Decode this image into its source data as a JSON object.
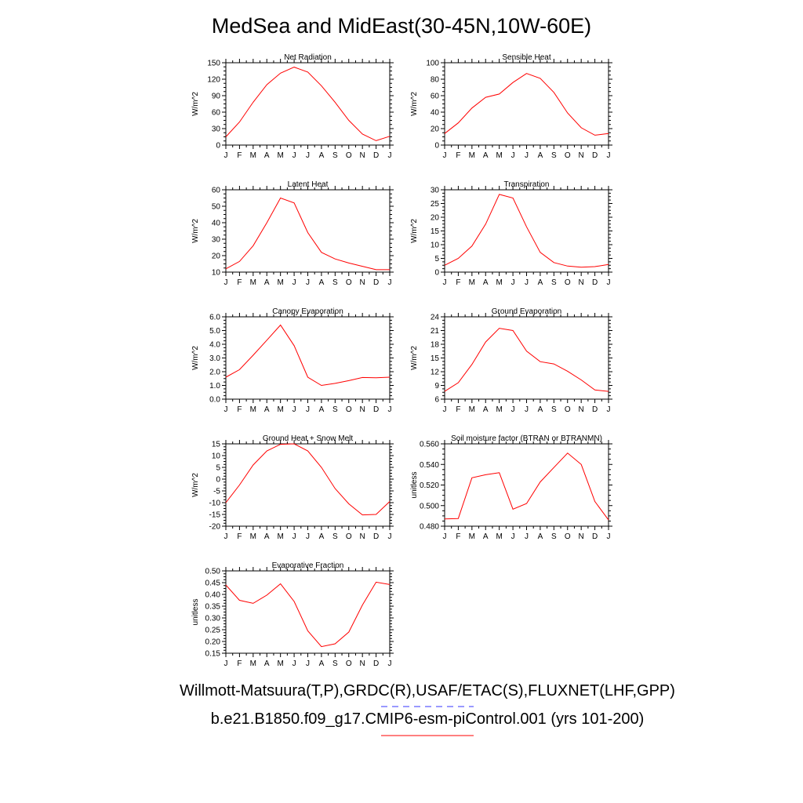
{
  "page": {
    "title": "MedSea and MidEast(30-45N,10W-60E)",
    "footer_obs": "Willmott-Matsuura(T,P),GRDC(R),USAF/ETAC(S),FLUXNET(LHF,GPP)",
    "footer_model": "b.e21.B1850.f09_g17.CMIP6-esm-piControl.001 (yrs 101-200)",
    "colors": {
      "model_line": "#ff0000",
      "obs_line": "#3333ff",
      "axis": "#000000"
    }
  },
  "chart_data": [
    {
      "type": "line",
      "title": "Net Radiation",
      "ylabel": "W/m^2",
      "categories": [
        "J",
        "F",
        "M",
        "A",
        "M",
        "J",
        "J",
        "A",
        "S",
        "O",
        "N",
        "D",
        "J"
      ],
      "ylim": [
        0,
        150
      ],
      "yticks": [
        0,
        30,
        60,
        90,
        120,
        150
      ],
      "ytick_labels": [
        "0",
        "30",
        "60",
        "90",
        "120",
        "150"
      ],
      "series": [
        {
          "values": [
            15,
            42,
            78,
            110,
            131,
            142,
            133,
            108,
            78,
            45,
            20,
            8,
            16
          ]
        }
      ]
    },
    {
      "type": "line",
      "title": "Sensible Heat",
      "ylabel": "W/m^2",
      "categories": [
        "J",
        "F",
        "M",
        "A",
        "M",
        "J",
        "J",
        "A",
        "S",
        "O",
        "N",
        "D",
        "J"
      ],
      "ylim": [
        0,
        100
      ],
      "yticks": [
        0,
        20,
        40,
        60,
        80,
        100
      ],
      "ytick_labels": [
        "0",
        "20",
        "40",
        "60",
        "80",
        "100"
      ],
      "series": [
        {
          "values": [
            14,
            27,
            45,
            58,
            62,
            76,
            87,
            81,
            64,
            39,
            21,
            12,
            14
          ]
        }
      ]
    },
    {
      "type": "line",
      "title": "Latent Heat",
      "ylabel": "W/m^2",
      "categories": [
        "J",
        "F",
        "M",
        "A",
        "M",
        "J",
        "J",
        "A",
        "S",
        "O",
        "N",
        "D",
        "J"
      ],
      "ylim": [
        10,
        60
      ],
      "yticks": [
        10,
        20,
        30,
        40,
        50,
        60
      ],
      "ytick_labels": [
        "10",
        "20",
        "30",
        "40",
        "50",
        "60"
      ],
      "series": [
        {
          "values": [
            12,
            16.5,
            26,
            40,
            55,
            52,
            34,
            22,
            18,
            15.5,
            13.5,
            11.5,
            11.5
          ]
        }
      ]
    },
    {
      "type": "line",
      "title": "Transpiration",
      "ylabel": "W/m^2",
      "categories": [
        "J",
        "F",
        "M",
        "A",
        "M",
        "J",
        "J",
        "A",
        "S",
        "O",
        "N",
        "D",
        "J"
      ],
      "ylim": [
        0,
        30
      ],
      "yticks": [
        0,
        5,
        10,
        15,
        20,
        25,
        30
      ],
      "ytick_labels": [
        "0",
        "5",
        "10",
        "15",
        "20",
        "25",
        "30"
      ],
      "series": [
        {
          "values": [
            2.5,
            5,
            9.5,
            17.5,
            28.3,
            27,
            16.5,
            7.2,
            3.5,
            2.2,
            1.8,
            2,
            2.8
          ]
        }
      ]
    },
    {
      "type": "line",
      "title": "Canopy Evaporation",
      "ylabel": "W/m^2",
      "categories": [
        "J",
        "F",
        "M",
        "A",
        "M",
        "J",
        "J",
        "A",
        "S",
        "O",
        "N",
        "D",
        "J"
      ],
      "ylim": [
        0,
        6
      ],
      "yticks": [
        0,
        1,
        2,
        3,
        4,
        5,
        6
      ],
      "ytick_labels": [
        "0.0",
        "1.0",
        "2.0",
        "3.0",
        "4.0",
        "5.0",
        "6.0"
      ],
      "series": [
        {
          "values": [
            1.6,
            2.15,
            3.2,
            4.3,
            5.4,
            3.9,
            1.6,
            1.0,
            1.15,
            1.35,
            1.58,
            1.56,
            1.6
          ]
        }
      ]
    },
    {
      "type": "line",
      "title": "Ground Evaporation",
      "ylabel": "W/m^2",
      "categories": [
        "J",
        "F",
        "M",
        "A",
        "M",
        "J",
        "J",
        "A",
        "S",
        "O",
        "N",
        "D",
        "J"
      ],
      "ylim": [
        6,
        24
      ],
      "yticks": [
        6,
        9,
        12,
        15,
        18,
        21,
        24
      ],
      "ytick_labels": [
        "6",
        "9",
        "12",
        "15",
        "18",
        "21",
        "24"
      ],
      "series": [
        {
          "values": [
            7.7,
            9.6,
            13.6,
            18.5,
            21.5,
            21.0,
            16.5,
            14.2,
            13.7,
            12.1,
            10.2,
            8.0,
            7.7
          ]
        }
      ]
    },
    {
      "type": "line",
      "title": "Ground Heat + Snow Melt",
      "ylabel": "W/m^2",
      "categories": [
        "J",
        "F",
        "M",
        "A",
        "M",
        "J",
        "J",
        "A",
        "S",
        "O",
        "N",
        "D",
        "J"
      ],
      "ylim": [
        -20,
        15
      ],
      "yticks": [
        -20,
        -15,
        -10,
        -5,
        0,
        5,
        10,
        15
      ],
      "ytick_labels": [
        "-20",
        "-15",
        "-10",
        "-5",
        "0",
        "5",
        "10",
        "15"
      ],
      "series": [
        {
          "values": [
            -10,
            -2.5,
            6,
            12,
            14.8,
            15,
            12,
            5,
            -4,
            -10.5,
            -15.2,
            -15,
            -9.5
          ]
        }
      ]
    },
    {
      "type": "line",
      "title": "Soil moisture factor (BTRAN or BTRANMN)",
      "ylabel": "unitless",
      "categories": [
        "J",
        "F",
        "M",
        "A",
        "M",
        "J",
        "J",
        "A",
        "S",
        "O",
        "N",
        "D",
        "J"
      ],
      "ylim": [
        0.48,
        0.56
      ],
      "yticks": [
        0.48,
        0.5,
        0.52,
        0.54,
        0.56
      ],
      "ytick_labels": [
        "0.480",
        "0.500",
        "0.520",
        "0.540",
        "0.560"
      ],
      "series": [
        {
          "values": [
            0.487,
            0.4875,
            0.527,
            0.53,
            0.532,
            0.4965,
            0.502,
            0.523,
            0.537,
            0.551,
            0.54,
            0.504,
            0.486
          ]
        }
      ]
    },
    {
      "type": "line",
      "title": "Evaporative Fraction",
      "ylabel": "unitless",
      "categories": [
        "J",
        "F",
        "M",
        "A",
        "M",
        "J",
        "J",
        "A",
        "S",
        "O",
        "N",
        "D",
        "J"
      ],
      "ylim": [
        0.15,
        0.5
      ],
      "yticks": [
        0.15,
        0.2,
        0.25,
        0.3,
        0.35,
        0.4,
        0.45,
        0.5
      ],
      "ytick_labels": [
        "0.15",
        "0.20",
        "0.25",
        "0.30",
        "0.35",
        "0.40",
        "0.45",
        "0.50"
      ],
      "series": [
        {
          "values": [
            0.44,
            0.375,
            0.362,
            0.397,
            0.445,
            0.37,
            0.245,
            0.178,
            0.19,
            0.24,
            0.355,
            0.452,
            0.442
          ]
        }
      ]
    }
  ]
}
